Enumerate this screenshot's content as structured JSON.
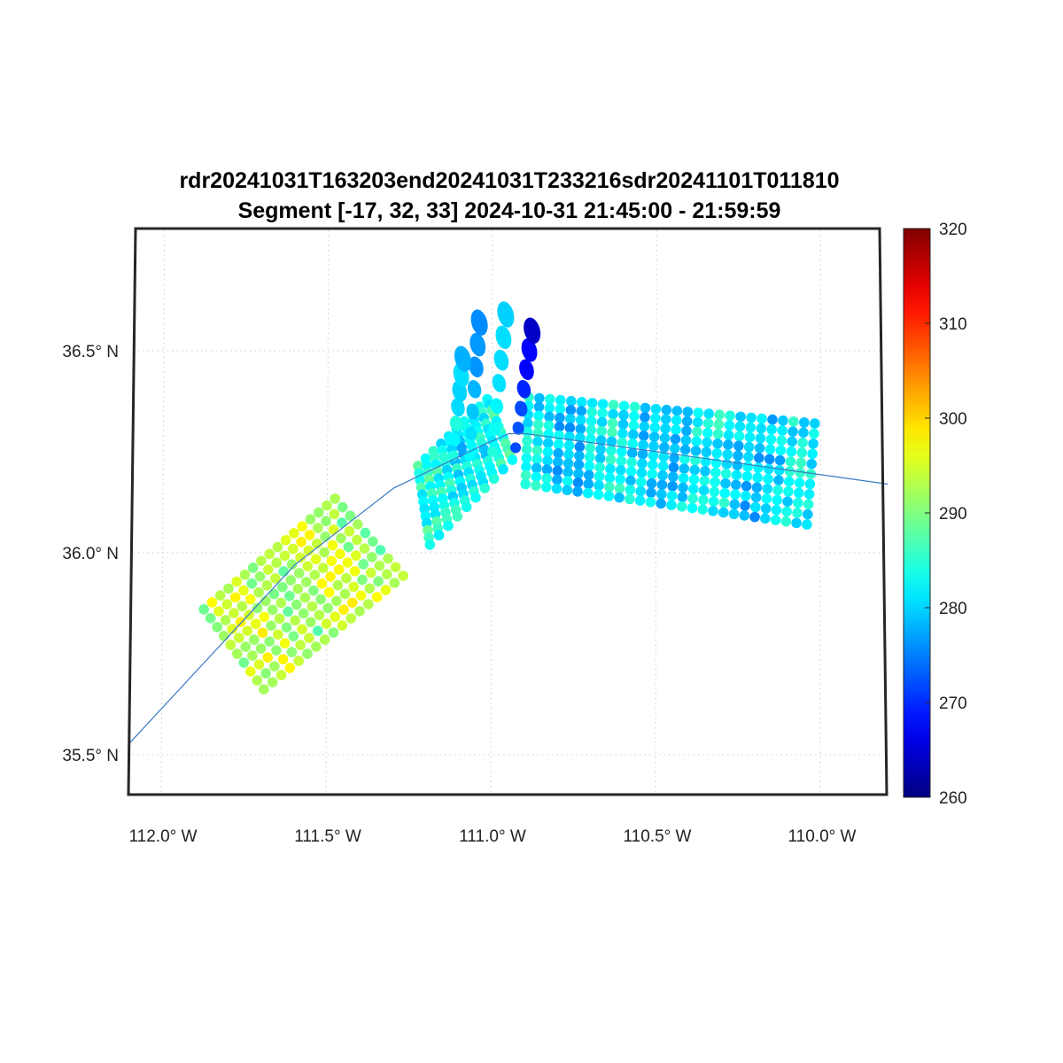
{
  "chart_data": {
    "type": "scatter",
    "title": "rdr20241031T163203end20241031T233216sdr20241101T011810",
    "subtitle": "Segment [-17, 32, 33] 2024-10-31 21:45:00 - 21:59:59",
    "xlim": [
      -112.1,
      -109.8
    ],
    "ylim": [
      35.4,
      36.8
    ],
    "grid": true,
    "x_ticks": [
      {
        "value": -112.0,
        "label": "112.0° W"
      },
      {
        "value": -111.5,
        "label": "111.5° W"
      },
      {
        "value": -111.0,
        "label": "111.0° W"
      },
      {
        "value": -110.5,
        "label": "110.5° W"
      },
      {
        "value": -110.0,
        "label": "110.0° W"
      }
    ],
    "y_ticks": [
      {
        "value": 36.5,
        "label": "36.5° N"
      },
      {
        "value": 36.0,
        "label": "36.0° N"
      },
      {
        "value": 35.5,
        "label": "35.5° N"
      }
    ],
    "colorbar": {
      "colormap": "jet",
      "range": [
        260,
        320
      ],
      "ticks": [
        "260",
        "270",
        "280",
        "290",
        "300",
        "310",
        "320"
      ]
    },
    "swaths": [
      {
        "name": "swath-1",
        "corners": [
          [
            -111.876,
            35.86
          ],
          [
            -111.478,
            36.134
          ],
          [
            -111.271,
            35.943
          ],
          [
            -111.694,
            35.662
          ]
        ],
        "cols": 17,
        "rows": 10,
        "temp_mean": 293,
        "temp_spread": 5
      },
      {
        "name": "swath-2",
        "corners": [
          [
            -111.226,
            36.215
          ],
          [
            -111.016,
            36.38
          ],
          [
            -110.94,
            36.23
          ],
          [
            -111.19,
            36.02
          ]
        ],
        "cols": 10,
        "rows": 12,
        "temp_mean": 283,
        "temp_spread": 5
      },
      {
        "name": "swath-3",
        "corners": [
          [
            -110.89,
            36.385
          ],
          [
            -110.022,
            36.32
          ],
          [
            -110.046,
            36.07
          ],
          [
            -110.9,
            36.17
          ]
        ],
        "cols": 28,
        "rows": 11,
        "temp_mean": 281,
        "temp_spread": 5
      }
    ],
    "fan_rays": [
      {
        "from": [
          -111.07,
          36.24
        ],
        "to": [
          -111.04,
          36.57
        ],
        "temp": 276
      },
      {
        "from": [
          -111.0,
          36.25
        ],
        "to": [
          -110.96,
          36.59
        ],
        "temp": 278
      },
      {
        "from": [
          -110.93,
          36.26
        ],
        "to": [
          -110.88,
          36.55
        ],
        "temp": 266
      },
      {
        "from": [
          -111.12,
          36.24
        ],
        "to": [
          -111.09,
          36.48
        ],
        "temp": 279
      }
    ],
    "track": [
      [
        -112.1,
        35.53
      ],
      [
        -111.6,
        35.97
      ],
      [
        -111.3,
        36.16
      ],
      [
        -111.02,
        36.27
      ],
      [
        -110.95,
        36.295
      ],
      [
        -110.9,
        36.295
      ],
      [
        -110.5,
        36.25
      ],
      [
        -109.8,
        36.17
      ]
    ],
    "track_color": "#3a7cc4"
  }
}
